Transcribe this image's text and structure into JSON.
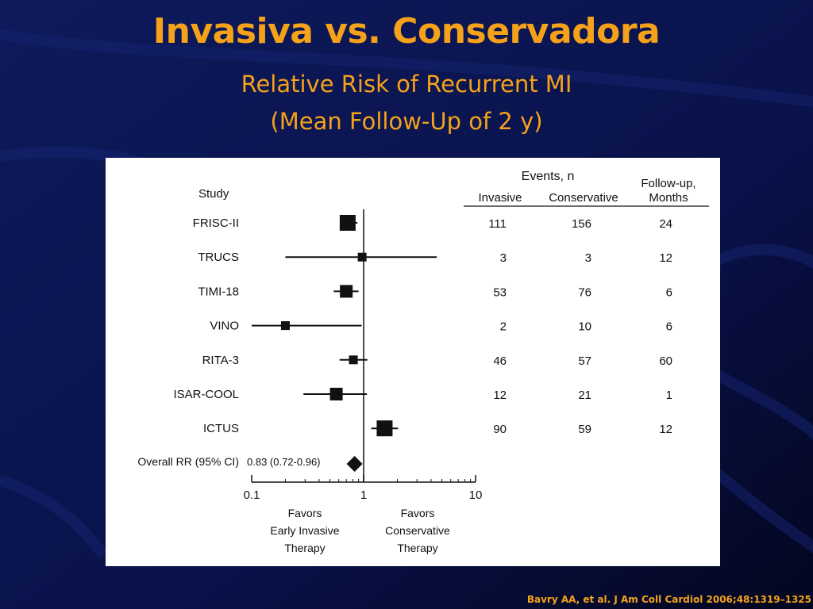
{
  "slide": {
    "title": "Invasiva vs. Conservadora",
    "subtitle_line1": "Relative Risk of Recurrent MI",
    "subtitle_line2": "(Mean Follow-Up of 2 y)",
    "citation": "Bavry AA, et al. J Am Coll Cardiol 2006;48:1319–1325"
  },
  "colors": {
    "background": "#08103a",
    "accent": "#f5a21a",
    "panel": "#ffffff",
    "ink": "#111111"
  },
  "chart_data": {
    "type": "forest",
    "x_scale": "log",
    "xlim": [
      0.1,
      10
    ],
    "x_ticks": [
      {
        "value": 0.1,
        "label": "0.1"
      },
      {
        "value": 1,
        "label": "1"
      },
      {
        "value": 10,
        "label": "10"
      }
    ],
    "reference_line": 1,
    "headers": {
      "study": "Study",
      "events": "Events, n",
      "invasive": "Invasive",
      "conservative": "Conservative",
      "followup_line1": "Follow-up,",
      "followup_line2": "Months"
    },
    "studies": [
      {
        "name": "FRISC-II",
        "rr": 0.72,
        "ci": [
          0.63,
          0.88
        ],
        "weight": "large",
        "invasive": "111",
        "conservative": "156",
        "followup": "24"
      },
      {
        "name": "TRUCS",
        "rr": 0.97,
        "ci": [
          0.2,
          4.5
        ],
        "weight": "small",
        "invasive": "3",
        "conservative": "3",
        "followup": "12"
      },
      {
        "name": "TIMI-18",
        "rr": 0.7,
        "ci": [
          0.54,
          0.9
        ],
        "weight": "medium",
        "invasive": "53",
        "conservative": "76",
        "followup": "6"
      },
      {
        "name": "VINO",
        "rr": 0.2,
        "ci": [
          0.1,
          0.96
        ],
        "weight": "small",
        "invasive": "2",
        "conservative": "10",
        "followup": "6"
      },
      {
        "name": "RITA-3",
        "rr": 0.81,
        "ci": [
          0.61,
          1.08
        ],
        "weight": "small",
        "invasive": "46",
        "conservative": "57",
        "followup": "60"
      },
      {
        "name": "ISAR-COOL",
        "rr": 0.57,
        "ci": [
          0.29,
          1.07
        ],
        "weight": "medium",
        "invasive": "12",
        "conservative": "21",
        "followup": "1"
      },
      {
        "name": "ICTUS",
        "rr": 1.54,
        "ci": [
          1.17,
          2.03
        ],
        "weight": "large",
        "invasive": "90",
        "conservative": "59",
        "followup": "12"
      }
    ],
    "overall": {
      "label": "Overall RR (95% CI)",
      "estimate_text": "0.83 (0.72-0.96)",
      "rr": 0.83,
      "ci": [
        0.72,
        0.96
      ]
    },
    "favors_left": [
      "Favors",
      "Early Invasive",
      "Therapy"
    ],
    "favors_right": [
      "Favors",
      "Conservative",
      "Therapy"
    ]
  }
}
